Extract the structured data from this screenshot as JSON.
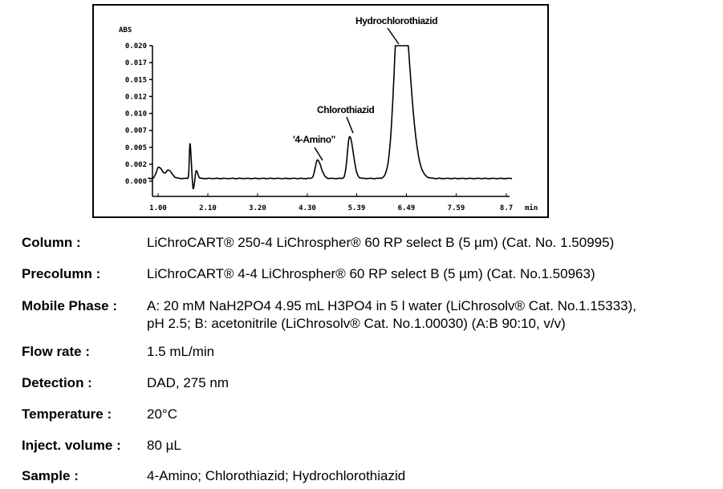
{
  "chart_data": {
    "type": "line",
    "ylabel": "ABS",
    "xunit": "min",
    "y_ticks": [
      "0.020",
      "0.017",
      "0.015",
      "0.012",
      "0.010",
      "0.007",
      "0.005",
      "0.002",
      "0.000"
    ],
    "y_tick_values": [
      0.02,
      0.0175,
      0.015,
      0.0125,
      0.01,
      0.0075,
      0.005,
      0.0025,
      0.0
    ],
    "x_ticks": [
      "1.00",
      "2.10",
      "3.20",
      "4.30",
      "5.39",
      "6.49",
      "7.59",
      "8.7"
    ],
    "x_tick_values": [
      1.0,
      2.1,
      3.2,
      4.3,
      5.39,
      6.49,
      7.59,
      8.7
    ],
    "xlim": [
      1.0,
      8.7
    ],
    "ylim": [
      0.0,
      0.02
    ],
    "grid": false,
    "line_color": "#000000",
    "peaks": [
      {
        "time": 1.14,
        "height": 0.0017,
        "width": 0.05
      },
      {
        "time": 1.35,
        "height": 0.0012,
        "width": 0.05
      },
      {
        "time": 1.83,
        "height": 0.0052,
        "width": 0.015
      },
      {
        "time": 1.9,
        "height": -0.0016,
        "width": 0.015
      },
      {
        "time": 1.97,
        "height": 0.0012,
        "width": 0.02
      },
      {
        "time": 4.65,
        "height": 0.0027,
        "width": 0.05
      },
      {
        "time": 5.36,
        "height": 0.0062,
        "width": 0.05
      },
      {
        "time": 6.48,
        "height": 0.03,
        "width": 0.12
      }
    ],
    "annotations": [
      {
        "label": "'4-Amino\"",
        "time": 4.65
      },
      {
        "label": "Chlorothiazid",
        "time": 5.36
      },
      {
        "label": "Hydrochlorothiazid",
        "time": 6.48
      }
    ]
  },
  "specs": [
    {
      "label": "Column :",
      "lines": [
        "LiChroCART® 250-4 LiChrospher® 60 RP select B (5 µm)  (Cat. No. 1.50995)"
      ]
    },
    {
      "label": "Precolumn :",
      "lines": [
        "LiChroCART® 4-4 LiChrospher® 60 RP select B (5 µm)  (Cat. No.1.50963)"
      ]
    },
    {
      "label": "Mobile Phase :",
      "lines": [
        "A: 20 mM NaH2PO4 4.95 mL H3PO4 in 5 l water (LiChrosolv® Cat. No.1.15333),",
        "pH 2.5; B: acetonitrile (LiChrosolv® Cat. No.1.00030) (A:B 90:10, v/v)"
      ]
    },
    {
      "label": "Flow rate :",
      "lines": [
        "1.5 mL/min"
      ]
    },
    {
      "label": "Detection :",
      "lines": [
        "DAD, 275 nm"
      ]
    },
    {
      "label": "Temperature :",
      "lines": [
        "20°C"
      ]
    },
    {
      "label": "Inject. volume :",
      "lines": [
        "80 µL"
      ]
    },
    {
      "label": "Sample :",
      "lines": [
        "4-Amino; Chlorothiazid; Hydrochlorothiazid"
      ]
    }
  ]
}
